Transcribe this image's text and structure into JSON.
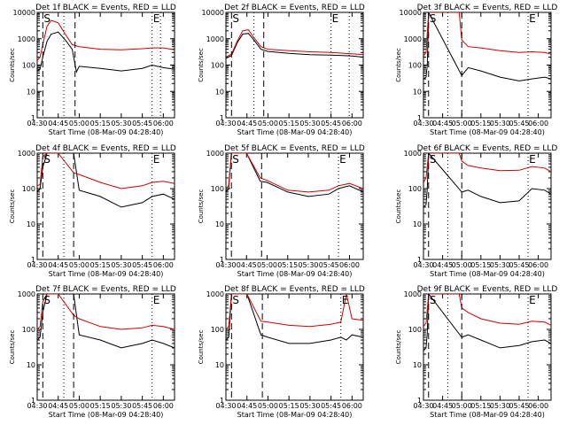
{
  "figure": {
    "x_ticks": [
      "04:30",
      "04:45",
      "05:00",
      "05:15",
      "05:30",
      "05:45",
      "06:00"
    ],
    "xlabel": "Start Time (08-Mar-09 04:28:40)",
    "ylabel": "Counts/sec"
  },
  "chart_data": [
    {
      "type": "line",
      "title": "Det 1f BLACK = Events, RED = LLD",
      "ylim": [
        1,
        10000
      ],
      "y_scale": "log",
      "y_ticks": [
        "1",
        "10",
        "100",
        "1000",
        "10000"
      ],
      "x_range": [
        "04:30",
        "06:08"
      ],
      "markers": [
        {
          "label": "S",
          "at": "04:34",
          "style": "dashed"
        },
        {
          "label": "",
          "at": "04:49",
          "style": "dotted"
        },
        {
          "label": "",
          "at": "04:57",
          "style": "dashed"
        },
        {
          "label": "E",
          "at": "05:52",
          "style": "dotted"
        },
        {
          "label": "",
          "at": "05:58",
          "style": "dotted"
        }
      ],
      "series": [
        {
          "color": "#000000",
          "x": [
            "04:30",
            "04:32",
            "04:34",
            "04:37",
            "04:40",
            "04:45",
            "04:50",
            "04:55",
            "04:58",
            "05:00",
            "05:15",
            "05:30",
            "05:45",
            "05:52",
            "06:00",
            "06:08"
          ],
          "values": [
            60,
            70,
            200,
            800,
            1500,
            1800,
            900,
            400,
            55,
            90,
            75,
            60,
            75,
            100,
            80,
            70
          ]
        },
        {
          "color": "#d00000",
          "x": [
            "04:30",
            "04:32",
            "04:34",
            "04:37",
            "04:40",
            "04:45",
            "04:50",
            "04:55",
            "05:00",
            "05:15",
            "05:30",
            "05:45",
            "05:52",
            "06:00",
            "06:08"
          ],
          "values": [
            150,
            200,
            600,
            3000,
            5000,
            4000,
            1500,
            600,
            500,
            400,
            380,
            420,
            450,
            450,
            380
          ]
        }
      ]
    },
    {
      "type": "line",
      "title": "Det 2f BLACK = Events, RED = LLD",
      "ylim": [
        1,
        10000
      ],
      "y_scale": "log",
      "y_ticks": [
        "1",
        "10",
        "100",
        "1000",
        "10000"
      ],
      "x_range": [
        "04:30",
        "06:08"
      ],
      "markers": [
        {
          "label": "S",
          "at": "04:34",
          "style": "dashed"
        },
        {
          "label": "",
          "at": "04:50",
          "style": "dotted"
        },
        {
          "label": "",
          "at": "04:57",
          "style": "dashed"
        },
        {
          "label": "E",
          "at": "05:45",
          "style": "dotted"
        },
        {
          "label": "",
          "at": "05:58",
          "style": "dotted"
        }
      ],
      "series": [
        {
          "color": "#000000",
          "x": [
            "04:30",
            "04:34",
            "04:38",
            "04:42",
            "04:46",
            "04:50",
            "04:55",
            "05:00",
            "05:15",
            "05:30",
            "05:45",
            "06:00",
            "06:08"
          ],
          "values": [
            180,
            230,
            700,
            1500,
            1600,
            900,
            400,
            330,
            280,
            250,
            240,
            220,
            200
          ]
        },
        {
          "color": "#d00000",
          "x": [
            "04:30",
            "04:34",
            "04:38",
            "04:42",
            "04:46",
            "04:50",
            "04:55",
            "05:00",
            "05:15",
            "05:30",
            "05:45",
            "06:00",
            "06:08"
          ],
          "values": [
            200,
            260,
            800,
            2000,
            2200,
            1100,
            500,
            400,
            350,
            320,
            300,
            270,
            250
          ]
        }
      ]
    },
    {
      "type": "line",
      "title": "Det 3f BLACK = Events, RED = LLD",
      "ylim": [
        1,
        10000
      ],
      "y_scale": "log",
      "y_ticks": [
        "1",
        "10",
        "100",
        "1000",
        "10000"
      ],
      "x_range": [
        "04:30",
        "06:10"
      ],
      "markers": [
        {
          "label": "S",
          "at": "04:34",
          "style": "dashed"
        },
        {
          "label": "",
          "at": "04:49",
          "style": "dotted"
        },
        {
          "label": "",
          "at": "05:00",
          "style": "dashed"
        },
        {
          "label": "E",
          "at": "05:52",
          "style": "dotted"
        }
      ],
      "series": [
        {
          "color": "#000000",
          "x": [
            "04:30",
            "04:32",
            "04:33",
            "04:34",
            "05:00",
            "05:05",
            "05:15",
            "05:30",
            "05:45",
            "05:55",
            "06:05",
            "06:10"
          ],
          "values": [
            30,
            35,
            100,
            10000,
            40,
            80,
            60,
            35,
            25,
            30,
            35,
            30
          ]
        },
        {
          "color": "#d00000",
          "x": [
            "04:30",
            "04:32",
            "04:34",
            "04:58",
            "05:00",
            "05:05",
            "05:15",
            "05:30",
            "05:45",
            "05:55",
            "06:05",
            "06:10"
          ],
          "values": [
            220,
            300,
            10000,
            10000,
            900,
            500,
            450,
            350,
            300,
            320,
            300,
            260
          ]
        }
      ]
    },
    {
      "type": "line",
      "title": "Det 4f BLACK = Events, RED = LLD",
      "ylim": [
        1,
        1000
      ],
      "y_scale": "log",
      "y_ticks": [
        "1",
        "10",
        "100",
        "1000"
      ],
      "x_range": [
        "04:30",
        "06:08"
      ],
      "markers": [
        {
          "label": "S",
          "at": "04:34",
          "style": "dashed"
        },
        {
          "label": "",
          "at": "04:49",
          "style": "dotted"
        },
        {
          "label": "",
          "at": "04:56",
          "style": "dashed"
        },
        {
          "label": "E",
          "at": "05:52",
          "style": "dotted"
        }
      ],
      "series": [
        {
          "color": "#000000",
          "x": [
            "04:30",
            "04:32",
            "04:34",
            "04:37",
            "04:56",
            "05:00",
            "05:15",
            "05:30",
            "05:45",
            "05:52",
            "06:00",
            "06:08"
          ],
          "values": [
            80,
            100,
            400,
            1000,
            1000,
            90,
            60,
            30,
            40,
            60,
            70,
            50
          ]
        },
        {
          "color": "#d00000",
          "x": [
            "04:30",
            "04:32",
            "04:34",
            "04:37",
            "04:45",
            "04:56",
            "05:00",
            "05:15",
            "05:30",
            "05:45",
            "05:52",
            "06:00",
            "06:08"
          ],
          "values": [
            120,
            130,
            800,
            1000,
            1000,
            280,
            250,
            150,
            100,
            120,
            150,
            160,
            140
          ]
        }
      ]
    },
    {
      "type": "line",
      "title": "Det 5f BLACK = Events, RED = LLD",
      "ylim": [
        1,
        1000
      ],
      "y_scale": "log",
      "y_ticks": [
        "1",
        "10",
        "100",
        "1000"
      ],
      "x_range": [
        "04:30",
        "06:10"
      ],
      "markers": [
        {
          "label": "S",
          "at": "04:34",
          "style": "dashed"
        },
        {
          "label": "",
          "at": "04:56",
          "style": "dashed"
        },
        {
          "label": "E",
          "at": "05:52",
          "style": "dotted"
        }
      ],
      "series": [
        {
          "color": "#000000",
          "x": [
            "04:30",
            "04:32",
            "04:34",
            "04:45",
            "04:55",
            "05:00",
            "05:15",
            "05:30",
            "05:45",
            "05:52",
            "06:00",
            "06:10"
          ],
          "values": [
            80,
            100,
            1000,
            1000,
            160,
            150,
            80,
            60,
            70,
            100,
            120,
            80
          ]
        },
        {
          "color": "#d00000",
          "x": [
            "04:30",
            "04:32",
            "04:34",
            "04:45",
            "04:55",
            "05:00",
            "05:15",
            "05:30",
            "05:45",
            "05:52",
            "06:00",
            "06:10"
          ],
          "values": [
            100,
            120,
            1000,
            1000,
            200,
            170,
            90,
            80,
            90,
            120,
            140,
            100
          ]
        }
      ]
    },
    {
      "type": "line",
      "title": "Det 6f BLACK = Events, RED = LLD",
      "ylim": [
        1,
        1000
      ],
      "y_scale": "log",
      "y_ticks": [
        "1",
        "10",
        "100",
        "1000"
      ],
      "x_range": [
        "04:30",
        "06:10"
      ],
      "markers": [
        {
          "label": "S",
          "at": "04:34",
          "style": "dashed"
        },
        {
          "label": "",
          "at": "04:49",
          "style": "dotted"
        },
        {
          "label": "",
          "at": "05:00",
          "style": "dashed"
        },
        {
          "label": "E",
          "at": "05:52",
          "style": "dotted"
        }
      ],
      "series": [
        {
          "color": "#000000",
          "x": [
            "04:30",
            "04:32",
            "04:33",
            "04:34",
            "05:00",
            "05:05",
            "05:15",
            "05:30",
            "05:45",
            "05:55",
            "06:05",
            "06:10"
          ],
          "values": [
            30,
            35,
            100,
            1000,
            80,
            90,
            60,
            40,
            45,
            100,
            90,
            70
          ]
        },
        {
          "color": "#d00000",
          "x": [
            "04:30",
            "04:32",
            "04:34",
            "04:58",
            "05:00",
            "05:05",
            "05:15",
            "05:30",
            "05:45",
            "05:55",
            "06:05",
            "06:10"
          ],
          "values": [
            150,
            200,
            1000,
            1000,
            600,
            450,
            380,
            320,
            330,
            420,
            380,
            300
          ]
        }
      ]
    },
    {
      "type": "line",
      "title": "Det 7f BLACK = Events, RED = LLD",
      "ylim": [
        1,
        1000
      ],
      "y_scale": "log",
      "y_ticks": [
        "1",
        "10",
        "100",
        "1000"
      ],
      "x_range": [
        "04:30",
        "06:08"
      ],
      "markers": [
        {
          "label": "S",
          "at": "04:34",
          "style": "dashed"
        },
        {
          "label": "",
          "at": "04:49",
          "style": "dotted"
        },
        {
          "label": "",
          "at": "04:56",
          "style": "dashed"
        },
        {
          "label": "E",
          "at": "05:52",
          "style": "dotted"
        }
      ],
      "series": [
        {
          "color": "#000000",
          "x": [
            "04:30",
            "04:32",
            "04:34",
            "04:37",
            "04:56",
            "05:00",
            "05:15",
            "05:30",
            "05:45",
            "05:52",
            "06:00",
            "06:08"
          ],
          "values": [
            50,
            60,
            300,
            1000,
            1000,
            70,
            50,
            30,
            40,
            50,
            40,
            30
          ]
        },
        {
          "color": "#d00000",
          "x": [
            "04:30",
            "04:32",
            "04:34",
            "04:37",
            "04:45",
            "04:56",
            "05:00",
            "05:15",
            "05:30",
            "05:45",
            "05:52",
            "06:00",
            "06:08"
          ],
          "values": [
            100,
            120,
            600,
            1000,
            1000,
            250,
            200,
            120,
            100,
            110,
            130,
            120,
            100
          ]
        }
      ]
    },
    {
      "type": "line",
      "title": "Det 8f BLACK = Events, RED = LLD",
      "ylim": [
        1,
        1000
      ],
      "y_scale": "log",
      "y_ticks": [
        "1",
        "10",
        "100",
        "1000"
      ],
      "x_range": [
        "04:30",
        "06:08"
      ],
      "markers": [
        {
          "label": "S",
          "at": "04:34",
          "style": "dashed"
        },
        {
          "label": "",
          "at": "04:56",
          "style": "dashed"
        },
        {
          "label": "E",
          "at": "05:52",
          "style": "dotted"
        }
      ],
      "series": [
        {
          "color": "#000000",
          "x": [
            "04:30",
            "04:32",
            "04:34",
            "04:45",
            "04:55",
            "05:00",
            "05:15",
            "05:30",
            "05:45",
            "05:52",
            "05:56",
            "06:00",
            "06:08"
          ],
          "values": [
            50,
            60,
            1000,
            1000,
            70,
            60,
            40,
            40,
            50,
            60,
            50,
            70,
            60
          ]
        },
        {
          "color": "#d00000",
          "x": [
            "04:30",
            "04:32",
            "04:34",
            "04:45",
            "04:55",
            "05:00",
            "05:15",
            "05:30",
            "05:45",
            "05:52",
            "05:56",
            "06:00",
            "06:08"
          ],
          "values": [
            100,
            120,
            1000,
            1000,
            170,
            160,
            130,
            120,
            140,
            160,
            1000,
            200,
            180
          ]
        }
      ]
    },
    {
      "type": "line",
      "title": "Det 9f BLACK = Events, RED = LLD",
      "ylim": [
        1,
        1000
      ],
      "y_scale": "log",
      "y_ticks": [
        "1",
        "10",
        "100",
        "1000"
      ],
      "x_range": [
        "04:30",
        "06:10"
      ],
      "markers": [
        {
          "label": "S",
          "at": "04:34",
          "style": "dashed"
        },
        {
          "label": "",
          "at": "04:49",
          "style": "dotted"
        },
        {
          "label": "",
          "at": "05:00",
          "style": "dashed"
        },
        {
          "label": "E",
          "at": "05:52",
          "style": "dotted"
        }
      ],
      "series": [
        {
          "color": "#000000",
          "x": [
            "04:30",
            "04:32",
            "04:33",
            "04:34",
            "05:00",
            "05:05",
            "05:15",
            "05:30",
            "05:45",
            "05:55",
            "06:05",
            "06:10"
          ],
          "values": [
            25,
            30,
            80,
            1000,
            60,
            70,
            50,
            30,
            35,
            45,
            50,
            40
          ]
        },
        {
          "color": "#d00000",
          "x": [
            "04:30",
            "04:32",
            "04:34",
            "04:58",
            "05:00",
            "05:05",
            "05:15",
            "05:30",
            "05:45",
            "05:55",
            "06:05",
            "06:10"
          ],
          "values": [
            120,
            150,
            1000,
            1000,
            400,
            300,
            200,
            150,
            140,
            170,
            160,
            130
          ]
        }
      ]
    }
  ]
}
